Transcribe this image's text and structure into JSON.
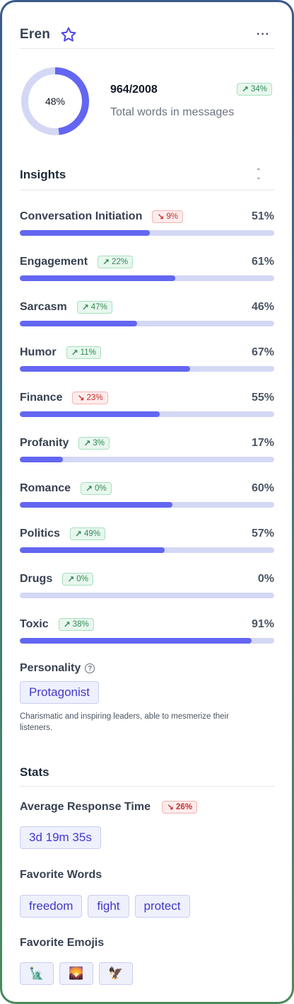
{
  "header": {
    "name": "Eren",
    "star_icon": "star-icon",
    "more_label": "···"
  },
  "summary": {
    "percent_label": "48%",
    "percent": 48,
    "count": "964/2008",
    "badge": "34%",
    "badge_dir": "up",
    "subtitle": "Total words in messages"
  },
  "insights": {
    "title": "Insights",
    "items": [
      {
        "label": "Conversation Initiation",
        "badge": "9%",
        "dir": "down",
        "value": "51%",
        "pct": 51
      },
      {
        "label": "Engagement",
        "badge": "22%",
        "dir": "up",
        "value": "61%",
        "pct": 61
      },
      {
        "label": "Sarcasm",
        "badge": "47%",
        "dir": "up",
        "value": "46%",
        "pct": 46
      },
      {
        "label": "Humor",
        "badge": "11%",
        "dir": "up",
        "value": "67%",
        "pct": 67
      },
      {
        "label": "Finance",
        "badge": "23%",
        "dir": "down",
        "value": "55%",
        "pct": 55
      },
      {
        "label": "Profanity",
        "badge": "3%",
        "dir": "up",
        "value": "17%",
        "pct": 17
      },
      {
        "label": "Romance",
        "badge": "0%",
        "dir": "up",
        "value": "60%",
        "pct": 60
      },
      {
        "label": "Politics",
        "badge": "49%",
        "dir": "up",
        "value": "57%",
        "pct": 57
      },
      {
        "label": "Drugs",
        "badge": "0%",
        "dir": "up",
        "value": "0%",
        "pct": 0
      },
      {
        "label": "Toxic",
        "badge": "38%",
        "dir": "up",
        "value": "91%",
        "pct": 91
      }
    ]
  },
  "personality": {
    "label": "Personality",
    "type": "Protagonist",
    "description": "Charismatic and inspiring leaders, able to mesmerize their listeners."
  },
  "stats": {
    "title": "Stats",
    "response_label": "Average Response Time",
    "response_badge": "26%",
    "response_dir": "down",
    "response_value": "3d 19m 35s",
    "words_label": "Favorite Words",
    "words": [
      "freedom",
      "fight",
      "protect"
    ],
    "emojis_label": "Favorite Emojis",
    "emojis": [
      "🗽",
      "🌄",
      "🦅"
    ]
  },
  "colors": {
    "accent": "#6366f1",
    "track": "#d4d8f5",
    "up": "#2f8a55",
    "down": "#c53030"
  }
}
